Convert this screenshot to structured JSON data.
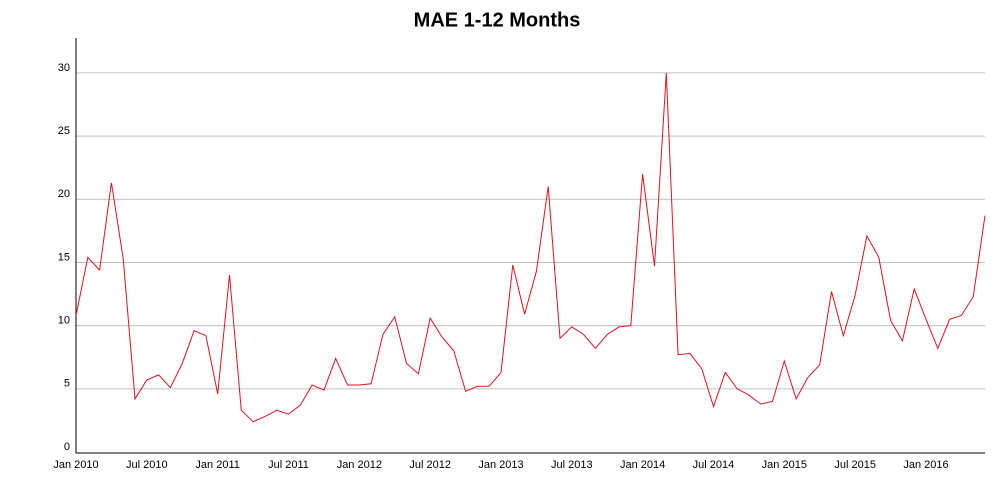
{
  "chart_data": {
    "type": "line",
    "title": "MAE 1-12 Months",
    "categories": [
      "Jan 2010",
      null,
      null,
      null,
      null,
      null,
      "Jul 2010",
      null,
      null,
      null,
      null,
      null,
      "Jan 2011",
      null,
      null,
      null,
      null,
      null,
      "Jul 2011",
      null,
      null,
      null,
      null,
      null,
      "Jan 2012",
      null,
      null,
      null,
      null,
      null,
      "Jul 2012",
      null,
      null,
      null,
      null,
      null,
      "Jan 2013",
      null,
      null,
      null,
      null,
      null,
      "Jul 2013",
      null,
      null,
      null,
      null,
      null,
      "Jan 2014",
      null,
      null,
      null,
      null,
      null,
      "Jul 2014",
      null,
      null,
      null,
      null,
      null,
      "Jan 2015",
      null,
      null,
      null,
      null,
      null,
      "Jul 2015",
      null,
      null,
      null,
      null,
      null,
      "Jan 2016",
      null,
      null,
      null,
      null,
      null
    ],
    "series": [
      {
        "name": "MAE 1-12 Months",
        "color": "#e0141e",
        "values": [
          10.8,
          15.4,
          14.4,
          21.3,
          15.3,
          4.2,
          5.7,
          6.1,
          5.1,
          7.0,
          9.6,
          9.2,
          4.6,
          14.0,
          3.3,
          2.4,
          2.8,
          3.3,
          3.0,
          3.7,
          5.3,
          4.9,
          7.4,
          5.3,
          5.3,
          5.4,
          9.3,
          10.7,
          7.0,
          6.2,
          10.6,
          9.1,
          8.0,
          4.8,
          5.2,
          5.2,
          6.3,
          14.8,
          10.9,
          14.3,
          21.0,
          9.0,
          9.9,
          9.3,
          8.2,
          9.3,
          9.9,
          10.0,
          22.0,
          14.7,
          30.0,
          7.7,
          7.8,
          6.6,
          3.6,
          6.3,
          5.0,
          4.5,
          3.8,
          4.0,
          7.2,
          4.2,
          5.9,
          6.9,
          12.7,
          9.2,
          12.4,
          17.1,
          15.4,
          10.4,
          8.8,
          12.9,
          10.5,
          8.2,
          10.5,
          10.8,
          12.3,
          18.7
        ]
      }
    ],
    "ylim": [
      0,
      33
    ],
    "yticks": [
      0,
      5,
      10,
      15,
      20,
      25,
      30
    ],
    "grid": true
  }
}
